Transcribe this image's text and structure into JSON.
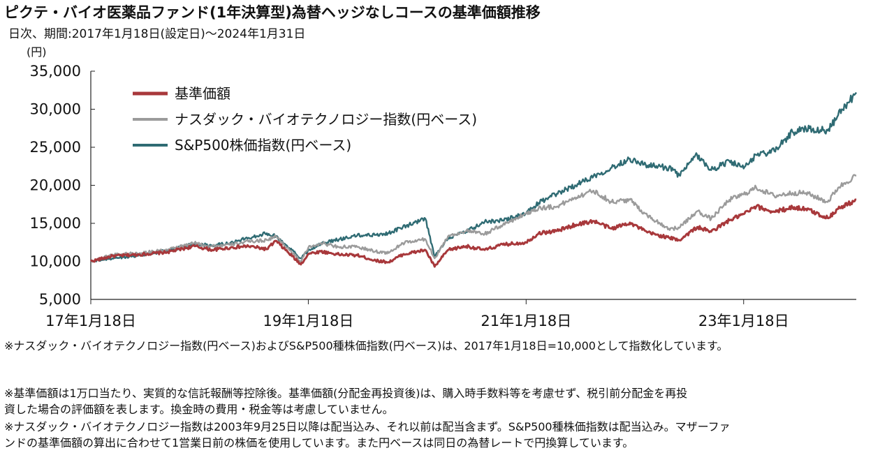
{
  "title": "ピクテ・バイオ医薬品ファンド(1年決算型)為替ヘッジなしコースの基準価額推移",
  "subtitle": "日次、期間:2017年1月18日(設定日)〜2024年1月31日",
  "unit_label": "(円)",
  "notes": {
    "index_note": "※ナスダック・バイオテクノロジー指数(円ベース)およびS&P500種株価指数(円ベース)は、2017年1月18日=10,000として指数化しています。",
    "nav_note_line1": "※基準価額は1万口当たり、実質的な信託報酬等控除後。基準価額(分配金再投資後)は、購入時手数料等を考慮せず、税引前分配金を再投",
    "nav_note_line2": "資した場合の評価額を表します。換金時の費用・税金等は考慮していません。",
    "dividend_note_line1": "※ナスダック・バイオテクノロジー指数は2003年9月25日以降は配当込み、それ以前は配当含まず。S&P500種株価指数は配当込み。マザーファ",
    "dividend_note_line2": "ンドの基準価額の算出に合わせて1営業日前の株価を使用しています。また円ベースは同日の為替レートで円換算しています。"
  },
  "chart_data": {
    "type": "line",
    "ylim": [
      5000,
      35000
    ],
    "yticks": [
      5000,
      10000,
      15000,
      20000,
      25000,
      30000,
      35000
    ],
    "ytick_labels": [
      "5,000",
      "10,000",
      "15,000",
      "20,000",
      "25,000",
      "30,000",
      "35,000"
    ],
    "xlim": [
      "2017-01-18",
      "2024-01-31"
    ],
    "xticks": [
      "2017-01-18",
      "2019-01-18",
      "2021-01-18",
      "2023-01-18"
    ],
    "xtick_labels": [
      "17年1月18日",
      "19年1月18日",
      "21年1月18日",
      "23年1月18日"
    ],
    "grid": false,
    "legend_position": "top-left",
    "series": [
      {
        "name": "基準価額",
        "color": "#a8383b",
        "x": [
          "2017-01-18",
          "2017-04-01",
          "2017-07-01",
          "2017-10-01",
          "2018-01-01",
          "2018-03-01",
          "2018-05-01",
          "2018-07-01",
          "2018-09-01",
          "2018-10-01",
          "2018-12-24",
          "2019-01-18",
          "2019-03-01",
          "2019-05-01",
          "2019-07-01",
          "2019-09-01",
          "2019-10-15",
          "2019-12-01",
          "2020-02-15",
          "2020-03-17",
          "2020-05-01",
          "2020-07-01",
          "2020-09-01",
          "2020-11-01",
          "2021-01-18",
          "2021-03-01",
          "2021-05-01",
          "2021-07-01",
          "2021-09-01",
          "2021-11-01",
          "2022-01-01",
          "2022-03-01",
          "2022-05-12",
          "2022-06-16",
          "2022-08-15",
          "2022-10-01",
          "2022-12-01",
          "2023-01-18",
          "2023-03-01",
          "2023-05-01",
          "2023-07-01",
          "2023-08-15",
          "2023-10-27",
          "2023-12-01",
          "2024-01-31"
        ],
        "values": [
          10000,
          10700,
          10900,
          11200,
          12000,
          11500,
          11800,
          12000,
          11600,
          12700,
          9600,
          11000,
          11300,
          10900,
          10800,
          10100,
          9900,
          10900,
          11500,
          9300,
          11500,
          12000,
          11500,
          12200,
          12500,
          13700,
          14000,
          14800,
          15300,
          14300,
          15100,
          13800,
          13100,
          12800,
          14500,
          13900,
          15400,
          16200,
          17200,
          16500,
          17100,
          16900,
          15700,
          16900,
          18100
        ]
      },
      {
        "name": "ナスダック・バイオテクノロジー指数(円ベース)",
        "color": "#9b9b9b",
        "x": [
          "2017-01-18",
          "2017-04-01",
          "2017-07-01",
          "2017-10-01",
          "2018-01-01",
          "2018-03-01",
          "2018-05-01",
          "2018-07-01",
          "2018-09-01",
          "2018-10-01",
          "2018-12-24",
          "2019-01-18",
          "2019-03-01",
          "2019-05-01",
          "2019-07-01",
          "2019-09-01",
          "2019-10-15",
          "2019-12-01",
          "2020-02-15",
          "2020-03-17",
          "2020-05-01",
          "2020-07-01",
          "2020-09-01",
          "2020-11-01",
          "2021-01-18",
          "2021-03-01",
          "2021-05-01",
          "2021-07-01",
          "2021-09-01",
          "2021-11-01",
          "2022-01-01",
          "2022-03-01",
          "2022-05-12",
          "2022-06-16",
          "2022-08-15",
          "2022-10-01",
          "2022-12-01",
          "2023-01-18",
          "2023-03-01",
          "2023-05-01",
          "2023-07-01",
          "2023-08-15",
          "2023-10-27",
          "2023-12-01",
          "2024-01-31"
        ],
        "values": [
          10000,
          10900,
          11100,
          11500,
          12400,
          12000,
          12200,
          12600,
          12800,
          13300,
          10000,
          11800,
          12400,
          11900,
          11900,
          11300,
          11100,
          12400,
          12900,
          10400,
          13300,
          14000,
          13600,
          14800,
          16300,
          17000,
          17200,
          18400,
          19300,
          17800,
          18100,
          16000,
          14300,
          14400,
          16600,
          15600,
          18100,
          18800,
          19700,
          18600,
          19000,
          19000,
          17800,
          19700,
          21300
        ]
      },
      {
        "name": "S&P500株価指数(円ベース)",
        "color": "#2f6b73",
        "x": [
          "2017-01-18",
          "2017-04-01",
          "2017-07-01",
          "2017-10-01",
          "2018-01-01",
          "2018-03-01",
          "2018-05-01",
          "2018-07-01",
          "2018-09-01",
          "2018-10-01",
          "2018-12-24",
          "2019-01-18",
          "2019-03-01",
          "2019-05-01",
          "2019-07-01",
          "2019-09-01",
          "2019-10-15",
          "2019-12-01",
          "2020-02-15",
          "2020-03-17",
          "2020-05-01",
          "2020-07-01",
          "2020-09-01",
          "2020-11-01",
          "2021-01-18",
          "2021-03-01",
          "2021-05-01",
          "2021-07-01",
          "2021-09-01",
          "2021-11-01",
          "2022-01-01",
          "2022-03-01",
          "2022-05-12",
          "2022-06-16",
          "2022-08-15",
          "2022-10-01",
          "2022-12-01",
          "2023-01-18",
          "2023-03-01",
          "2023-05-01",
          "2023-07-01",
          "2023-08-15",
          "2023-10-27",
          "2023-12-01",
          "2024-01-31"
        ],
        "values": [
          10000,
          10400,
          10800,
          11400,
          12300,
          12100,
          12400,
          13100,
          13700,
          13300,
          10400,
          11500,
          12300,
          12900,
          13400,
          13500,
          13700,
          14500,
          15600,
          10600,
          13100,
          13900,
          15200,
          15400,
          16300,
          17700,
          18900,
          20000,
          21200,
          22300,
          23500,
          22600,
          22300,
          21300,
          24000,
          22000,
          23200,
          22200,
          24000,
          24500,
          27000,
          27500,
          27200,
          29200,
          32200
        ]
      }
    ]
  }
}
